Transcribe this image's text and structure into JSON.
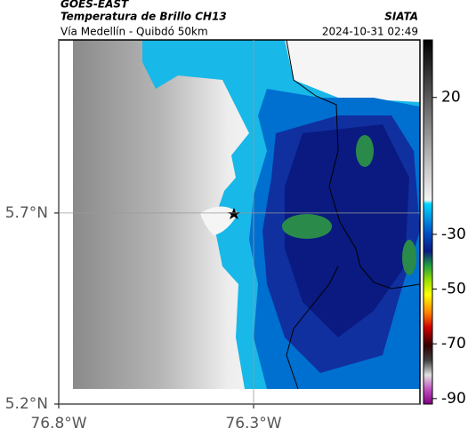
{
  "header": {
    "title": "GOES-EAST",
    "subtitle": "Temperatura de Brillo CH13",
    "source": "SIATA",
    "caption": "Vía Medellín - Quibdó 50km",
    "timestamp": "2024-10-31 02:49"
  },
  "map": {
    "xlim": [
      -76.8,
      -75.873
    ],
    "ylim": [
      5.2,
      6.153
    ],
    "xticks": [
      {
        "value": -76.8,
        "label": "76.8°W"
      },
      {
        "value": -76.3,
        "label": "76.3°W"
      }
    ],
    "yticks": [
      {
        "value": 5.2,
        "label": "5.2°N"
      },
      {
        "value": 5.7,
        "label": "5.7°N"
      }
    ]
  },
  "colorbar": {
    "lim": [
      -92,
      41
    ],
    "ticks": [
      20,
      -30,
      -50,
      -70,
      -90
    ]
  }
}
